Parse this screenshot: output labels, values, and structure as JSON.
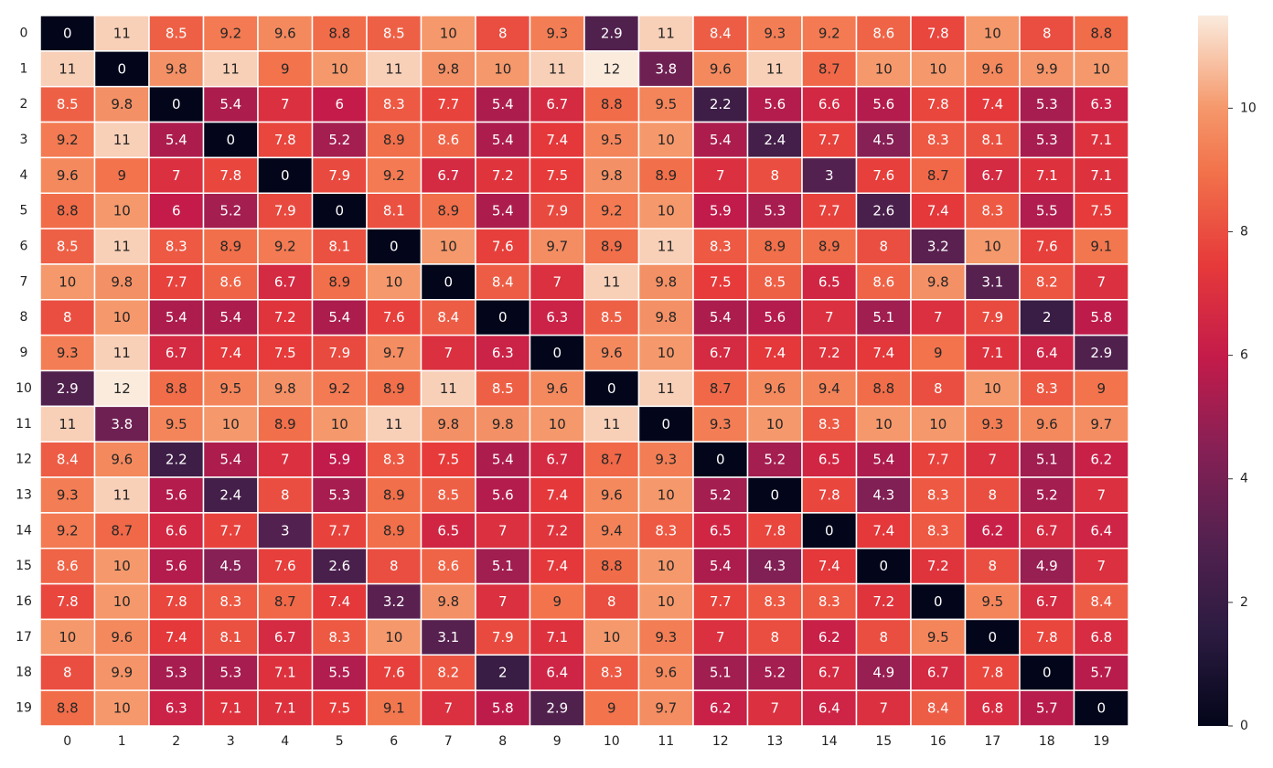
{
  "chart_data": {
    "type": "heatmap",
    "title": "",
    "xlabel": "",
    "ylabel": "",
    "colormap": "rocket",
    "colorbar_range": [
      0,
      11.5
    ],
    "colorbar_ticks": [
      0,
      2,
      4,
      6,
      8,
      10
    ],
    "grid_lines": "white",
    "x_tick_labels": [
      "0",
      "1",
      "2",
      "3",
      "4",
      "5",
      "6",
      "7",
      "8",
      "9",
      "10",
      "11",
      "12",
      "13",
      "14",
      "15",
      "16",
      "17",
      "18",
      "19"
    ],
    "y_tick_labels": [
      "0",
      "1",
      "2",
      "3",
      "4",
      "5",
      "6",
      "7",
      "8",
      "9",
      "10",
      "11",
      "12",
      "13",
      "14",
      "15",
      "16",
      "17",
      "18",
      "19"
    ],
    "matrix": [
      [
        0,
        11,
        8.5,
        9.2,
        9.6,
        8.8,
        8.5,
        10,
        8,
        9.3,
        2.9,
        11,
        8.4,
        9.3,
        9.2,
        8.6,
        7.8,
        10,
        8,
        8.8
      ],
      [
        11,
        0,
        9.8,
        11,
        9,
        10,
        11,
        9.8,
        10,
        11,
        12,
        3.8,
        9.6,
        11,
        8.7,
        10,
        10,
        9.6,
        9.9,
        10
      ],
      [
        8.5,
        9.8,
        0,
        5.4,
        7,
        6,
        8.3,
        7.7,
        5.4,
        6.7,
        8.8,
        9.5,
        2.2,
        5.6,
        6.6,
        5.6,
        7.8,
        7.4,
        5.3,
        6.3
      ],
      [
        9.2,
        11,
        5.4,
        0,
        7.8,
        5.2,
        8.9,
        8.6,
        5.4,
        7.4,
        9.5,
        10,
        5.4,
        2.4,
        7.7,
        4.5,
        8.3,
        8.1,
        5.3,
        7.1
      ],
      [
        9.6,
        9,
        7,
        7.8,
        0,
        7.9,
        9.2,
        6.7,
        7.2,
        7.5,
        9.8,
        8.9,
        7,
        8,
        3,
        7.6,
        8.7,
        6.7,
        7.1,
        7.1
      ],
      [
        8.8,
        10,
        6,
        5.2,
        7.9,
        0,
        8.1,
        8.9,
        5.4,
        7.9,
        9.2,
        10,
        5.9,
        5.3,
        7.7,
        2.6,
        7.4,
        8.3,
        5.5,
        7.5
      ],
      [
        8.5,
        11,
        8.3,
        8.9,
        9.2,
        8.1,
        0,
        10,
        7.6,
        9.7,
        8.9,
        11,
        8.3,
        8.9,
        8.9,
        8,
        3.2,
        10,
        7.6,
        9.1
      ],
      [
        10,
        9.8,
        7.7,
        8.6,
        6.7,
        8.9,
        10,
        0,
        8.4,
        7,
        11,
        9.8,
        7.5,
        8.5,
        6.5,
        8.6,
        9.8,
        3.1,
        8.2,
        7
      ],
      [
        8,
        10,
        5.4,
        5.4,
        7.2,
        5.4,
        7.6,
        8.4,
        0,
        6.3,
        8.5,
        9.8,
        5.4,
        5.6,
        7,
        5.1,
        7,
        7.9,
        2,
        5.8
      ],
      [
        9.3,
        11,
        6.7,
        7.4,
        7.5,
        7.9,
        9.7,
        7,
        6.3,
        0,
        9.6,
        10,
        6.7,
        7.4,
        7.2,
        7.4,
        9,
        7.1,
        6.4,
        2.9
      ],
      [
        2.9,
        12,
        8.8,
        9.5,
        9.8,
        9.2,
        8.9,
        11,
        8.5,
        9.6,
        0,
        11,
        8.7,
        9.6,
        9.4,
        8.8,
        8,
        10,
        8.3,
        9
      ],
      [
        11,
        3.8,
        9.5,
        10,
        8.9,
        10,
        11,
        9.8,
        9.8,
        10,
        11,
        0,
        9.3,
        10,
        8.3,
        10,
        10,
        9.3,
        9.6,
        9.7
      ],
      [
        8.4,
        9.6,
        2.2,
        5.4,
        7,
        5.9,
        8.3,
        7.5,
        5.4,
        6.7,
        8.7,
        9.3,
        0,
        5.2,
        6.5,
        5.4,
        7.7,
        7,
        5.1,
        6.2
      ],
      [
        9.3,
        11,
        5.6,
        2.4,
        8,
        5.3,
        8.9,
        8.5,
        5.6,
        7.4,
        9.6,
        10,
        5.2,
        0,
        7.8,
        4.3,
        8.3,
        8,
        5.2,
        7
      ],
      [
        9.2,
        8.7,
        6.6,
        7.7,
        3,
        7.7,
        8.9,
        6.5,
        7,
        7.2,
        9.4,
        8.3,
        6.5,
        7.8,
        0,
        7.4,
        8.3,
        6.2,
        6.7,
        6.4
      ],
      [
        8.6,
        10,
        5.6,
        4.5,
        7.6,
        2.6,
        8,
        8.6,
        5.1,
        7.4,
        8.8,
        10,
        5.4,
        4.3,
        7.4,
        0,
        7.2,
        8,
        4.9,
        7
      ],
      [
        7.8,
        10,
        7.8,
        8.3,
        8.7,
        7.4,
        3.2,
        9.8,
        7,
        9,
        8,
        10,
        7.7,
        8.3,
        8.3,
        7.2,
        0,
        9.5,
        6.7,
        8.4
      ],
      [
        10,
        9.6,
        7.4,
        8.1,
        6.7,
        8.3,
        10,
        3.1,
        7.9,
        7.1,
        10,
        9.3,
        7,
        8,
        6.2,
        8,
        9.5,
        0,
        7.8,
        6.8
      ],
      [
        8,
        9.9,
        5.3,
        5.3,
        7.1,
        5.5,
        7.6,
        8.2,
        2,
        6.4,
        8.3,
        9.6,
        5.1,
        5.2,
        6.7,
        4.9,
        6.7,
        7.8,
        0,
        5.7
      ],
      [
        8.8,
        10,
        6.3,
        7.1,
        7.1,
        7.5,
        9.1,
        7,
        5.8,
        2.9,
        9,
        9.7,
        6.2,
        7,
        6.4,
        7,
        8.4,
        6.8,
        5.7,
        0
      ]
    ]
  }
}
